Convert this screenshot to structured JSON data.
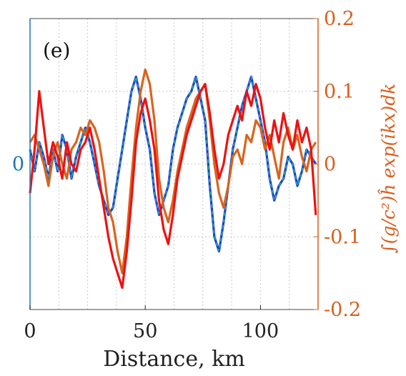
{
  "chart_data": {
    "type": "line",
    "panel_label": "(e)",
    "xlabel": "Distance, km",
    "ylabel_right": "∫(g/c²)ĥ exp(ikx)dk",
    "xlim": [
      0,
      125
    ],
    "x_ticks": [
      0,
      50,
      100
    ],
    "x_tick_labels": [
      "0",
      "50",
      "100"
    ],
    "ylim_right": [
      -0.2,
      0.2
    ],
    "y_ticks_right": [
      -0.2,
      -0.1,
      0,
      0.1,
      0.2
    ],
    "y_tick_labels_right": [
      "-0.2",
      "-0.1",
      "0",
      "0.1",
      "0.2"
    ],
    "y_ticks_left": [
      0
    ],
    "y_tick_labels_left": [
      "0"
    ],
    "grid": true,
    "colors": {
      "left_axis": "#1f77b4",
      "right_axis": "#d95f1e",
      "grid": "#c8c8c8",
      "frame": "#444444"
    },
    "series": [
      {
        "color": "#1f3fd0",
        "dashed_overlay": "#23b3a6",
        "x": [
          0,
          2,
          4,
          6,
          8,
          10,
          12,
          14,
          16,
          18,
          20,
          22,
          24,
          26,
          28,
          30,
          32,
          34,
          36,
          38,
          40,
          42,
          44,
          46,
          48,
          50,
          52,
          54,
          56,
          58,
          60,
          62,
          64,
          66,
          68,
          70,
          72,
          74,
          76,
          78,
          80,
          82,
          84,
          86,
          88,
          90,
          92,
          94,
          96,
          98,
          100,
          102,
          104,
          106,
          108,
          110,
          112,
          114,
          116,
          118,
          120,
          122,
          124
        ],
        "y": [
          0.02,
          -0.01,
          0.03,
          0.01,
          -0.02,
          0.02,
          -0.01,
          0.04,
          0.02,
          -0.02,
          0.01,
          0.03,
          0.05,
          0.03,
          0.0,
          -0.03,
          -0.05,
          -0.07,
          -0.06,
          -0.02,
          0.02,
          0.06,
          0.1,
          0.12,
          0.09,
          0.05,
          0.02,
          -0.04,
          -0.07,
          -0.05,
          -0.03,
          0.02,
          0.05,
          0.07,
          0.09,
          0.1,
          0.12,
          0.09,
          0.06,
          -0.03,
          -0.1,
          -0.12,
          -0.08,
          -0.03,
          0.02,
          0.05,
          0.08,
          0.1,
          0.12,
          0.09,
          0.06,
          0.03,
          -0.02,
          -0.05,
          -0.03,
          -0.02,
          0.01,
          0.0,
          -0.03,
          -0.01,
          0.02,
          0.01,
          0.0
        ]
      },
      {
        "color": "#d9641e",
        "x": [
          0,
          2,
          4,
          6,
          8,
          10,
          12,
          14,
          16,
          18,
          20,
          22,
          24,
          26,
          28,
          30,
          32,
          34,
          36,
          38,
          40,
          42,
          44,
          46,
          48,
          50,
          52,
          54,
          56,
          58,
          60,
          62,
          64,
          66,
          68,
          70,
          72,
          74,
          76,
          78,
          80,
          82,
          84,
          86,
          88,
          90,
          92,
          94,
          96,
          98,
          100,
          102,
          104,
          106,
          108,
          110,
          112,
          114,
          116,
          118,
          120,
          122,
          124
        ],
        "y": [
          0.03,
          0.04,
          0.02,
          0.0,
          -0.03,
          0.01,
          0.03,
          0.0,
          -0.02,
          0.02,
          0.03,
          0.05,
          0.04,
          0.06,
          0.05,
          0.03,
          -0.01,
          -0.06,
          -0.08,
          -0.12,
          -0.15,
          -0.1,
          -0.02,
          0.05,
          0.1,
          0.13,
          0.11,
          0.06,
          -0.02,
          -0.06,
          -0.08,
          -0.05,
          -0.01,
          0.02,
          0.05,
          0.07,
          0.09,
          0.1,
          0.11,
          0.06,
          0.0,
          -0.04,
          -0.06,
          -0.03,
          0.01,
          0.02,
          0.0,
          0.04,
          0.03,
          0.06,
          0.05,
          0.02,
          0.04,
          0.01,
          -0.02,
          0.03,
          0.05,
          0.02,
          0.04,
          0.01,
          -0.01,
          0.02,
          0.03
        ]
      },
      {
        "color": "#ee1111",
        "x": [
          0,
          2,
          4,
          6,
          8,
          10,
          12,
          14,
          16,
          18,
          20,
          22,
          24,
          26,
          28,
          30,
          32,
          34,
          36,
          38,
          40,
          42,
          44,
          46,
          48,
          50,
          52,
          54,
          56,
          58,
          60,
          62,
          64,
          66,
          68,
          70,
          72,
          74,
          76,
          78,
          80,
          82,
          84,
          86,
          88,
          90,
          92,
          94,
          96,
          98,
          100,
          102,
          104,
          106,
          108,
          110,
          112,
          114,
          116,
          118,
          120,
          122,
          124
        ],
        "y": [
          -0.04,
          0.02,
          0.1,
          0.05,
          0.0,
          0.03,
          0.01,
          -0.02,
          0.03,
          0.0,
          -0.01,
          0.02,
          0.03,
          0.05,
          0.02,
          -0.02,
          -0.06,
          -0.1,
          -0.13,
          -0.15,
          -0.17,
          -0.12,
          -0.05,
          0.03,
          0.07,
          0.09,
          0.06,
          0.02,
          -0.05,
          -0.09,
          -0.11,
          -0.07,
          -0.02,
          0.01,
          0.04,
          0.06,
          0.08,
          0.1,
          0.11,
          0.07,
          0.02,
          -0.02,
          0.0,
          0.04,
          0.06,
          0.08,
          0.06,
          0.1,
          0.08,
          0.11,
          0.09,
          0.05,
          0.02,
          0.06,
          0.03,
          0.07,
          0.04,
          0.02,
          0.06,
          0.03,
          0.05,
          0.02,
          -0.07
        ]
      }
    ]
  }
}
